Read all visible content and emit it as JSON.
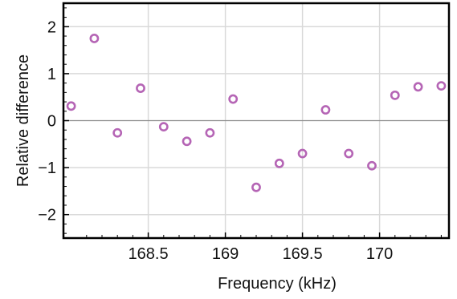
{
  "chart_data": {
    "type": "scatter",
    "title": "",
    "xlabel": "Frequency (kHz)",
    "ylabel": "Relative difference",
    "xlim": [
      167.95,
      170.45
    ],
    "ylim": [
      -2.5,
      2.5
    ],
    "x_ticks": [
      {
        "value": 168.5,
        "label": "168.5"
      },
      {
        "value": 169,
        "label": "169"
      },
      {
        "value": 169.5,
        "label": "169.5"
      },
      {
        "value": 170,
        "label": "170"
      }
    ],
    "y_ticks": [
      {
        "value": 2,
        "label": "2"
      },
      {
        "value": 1,
        "label": "1"
      },
      {
        "value": 0,
        "label": "0"
      },
      {
        "value": -1,
        "label": "−1"
      },
      {
        "value": -2,
        "label": "−2"
      }
    ],
    "grid": true,
    "zero_line": true,
    "marker": "open-circle",
    "colors": {
      "marker": "#b565b5",
      "grid": "#d9d9d9",
      "zero_line": "#8c8c8c",
      "frame": "#000000"
    },
    "series": [
      {
        "x": [
          168.0,
          168.15,
          168.3,
          168.45,
          168.6,
          168.75,
          168.9,
          169.05,
          169.2,
          169.35,
          169.5,
          169.65,
          169.8,
          169.95,
          170.1,
          170.25,
          170.4
        ],
        "y": [
          0.31,
          1.75,
          -0.26,
          0.69,
          -0.13,
          -0.44,
          -0.26,
          0.46,
          -1.42,
          -0.91,
          -0.7,
          0.23,
          -0.7,
          -0.96,
          0.54,
          0.72,
          0.74
        ]
      }
    ]
  }
}
